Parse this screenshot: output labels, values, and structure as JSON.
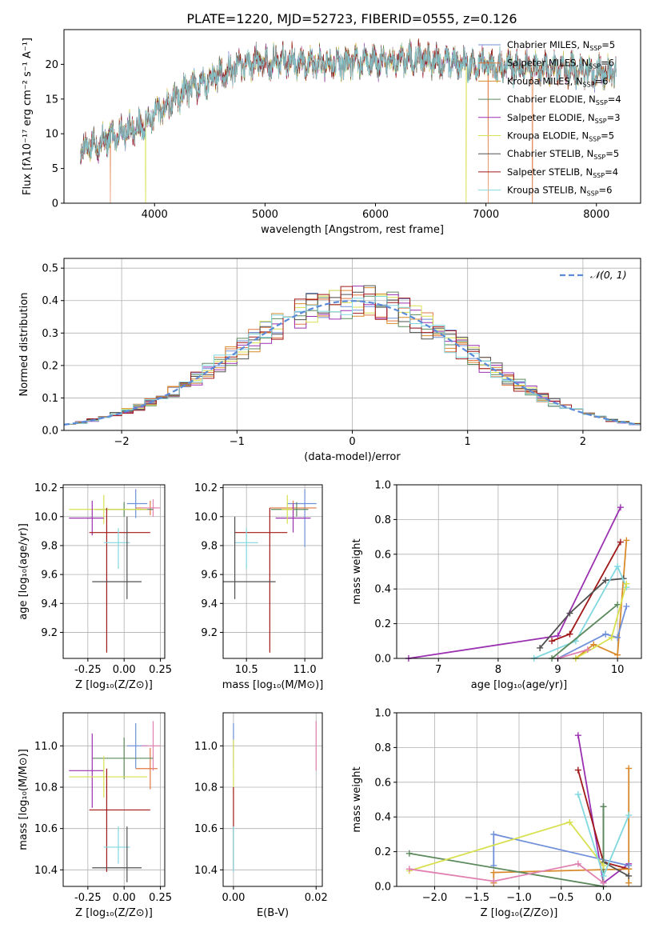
{
  "figure_title": "PLATE=1220, MJD=52723, FIBERID=0555, z=0.126",
  "colors": {
    "Chabrier MILES": "#6f8fd8",
    "Salpeter MILES": "#e07840",
    "Kroupa MILES": "#d88a2a",
    "Chabrier ELODIE": "#5c8a5c",
    "Salpeter ELODIE": "#9b30b0",
    "Kroupa ELODIE": "#d8e050",
    "Chabrier STELIB": "#505050",
    "Salpeter STELIB": "#a01818",
    "Kroupa STELIB": "#80d8e0",
    "extra_pink": "#e080b0",
    "gauss": "#5b8ad8"
  },
  "chart_data": [
    {
      "id": "spectrum",
      "type": "line",
      "title": "PLATE=1220, MJD=52723, FIBERID=0555, z=0.126",
      "xlabel": "wavelength [Angstrom, rest frame]",
      "ylabel": "Flux [fλ10⁻¹⁷ erg cm⁻² s⁻¹ A⁻¹]",
      "xlim": [
        3180,
        8400
      ],
      "ylim": [
        0,
        25
      ],
      "xticks": [
        4000,
        5000,
        6000,
        7000,
        8000
      ],
      "yticks": [
        0,
        5,
        10,
        15,
        20
      ],
      "grid": false,
      "legend_position": "top-right",
      "x_range": [
        3330,
        8180
      ],
      "continuum": [
        [
          3330,
          7.6
        ],
        [
          3500,
          8.7
        ],
        [
          3700,
          10.3
        ],
        [
          3900,
          11.2
        ],
        [
          4050,
          13.5
        ],
        [
          4300,
          16.3
        ],
        [
          4600,
          18.6
        ],
        [
          4900,
          20.3
        ],
        [
          5200,
          20.5
        ],
        [
          5500,
          20.2
        ],
        [
          5800,
          20.1
        ],
        [
          6100,
          20.4
        ],
        [
          6400,
          20.8
        ],
        [
          6700,
          20.2
        ],
        [
          7000,
          19.7
        ],
        [
          7300,
          19.6
        ],
        [
          7700,
          19.3
        ],
        [
          8180,
          18.6
        ]
      ],
      "dropouts": [
        [
          3600,
          "Salpeter MILES"
        ],
        [
          3920,
          "Kroupa ELODIE"
        ],
        [
          6820,
          "Kroupa ELODIE"
        ],
        [
          7020,
          "Salpeter MILES"
        ],
        [
          7420,
          "Salpeter MILES"
        ]
      ],
      "legend": [
        {
          "label": "Chabrier MILES, N",
          "sub": "SSP",
          "n": "=5"
        },
        {
          "label": "Salpeter MILES, N",
          "sub": "SSP",
          "n": "=6"
        },
        {
          "label": "Kroupa MILES, N",
          "sub": "SSP",
          "n": "=6"
        },
        {
          "label": "Chabrier ELODIE, N",
          "sub": "SSP",
          "n": "=4"
        },
        {
          "label": "Salpeter ELODIE, N",
          "sub": "SSP",
          "n": "=3"
        },
        {
          "label": "Kroupa ELODIE, N",
          "sub": "SSP",
          "n": "=5"
        },
        {
          "label": "Chabrier STELIB, N",
          "sub": "SSP",
          "n": "=5"
        },
        {
          "label": "Salpeter STELIB, N",
          "sub": "SSP",
          "n": "=4"
        },
        {
          "label": "Kroupa STELIB, N",
          "sub": "SSP",
          "n": "=6"
        }
      ],
      "series_names": [
        "Chabrier MILES",
        "Salpeter MILES",
        "Kroupa MILES",
        "Chabrier ELODIE",
        "Salpeter ELODIE",
        "Kroupa ELODIE",
        "Chabrier STELIB",
        "Salpeter STELIB",
        "Kroupa STELIB"
      ]
    },
    {
      "id": "residuals",
      "type": "bar",
      "xlabel": "(data-model)/error",
      "ylabel": "Normed distribution",
      "xlim": [
        -2.5,
        2.5
      ],
      "ylim": [
        0,
        0.53
      ],
      "xticks": [
        -2,
        -1,
        0,
        1,
        2
      ],
      "yticks": [
        0.0,
        0.1,
        0.2,
        0.3,
        0.4,
        0.5
      ],
      "grid": true,
      "legend_position": "top-right",
      "legend": [
        {
          "label": "𝒩(0, 1)"
        }
      ],
      "bin_width": 0.1,
      "series_names": [
        "Chabrier MILES",
        "Salpeter MILES",
        "Kroupa MILES",
        "Chabrier ELODIE",
        "Salpeter ELODIE",
        "Kroupa ELODIE",
        "Chabrier STELIB",
        "Salpeter STELIB",
        "Kroupa STELIB"
      ]
    },
    {
      "id": "age_vs_Z",
      "type": "scatter",
      "xlabel": "Z [log₁₀(Z/Z⊙)]",
      "ylabel": "age  [log₁₀(age/yr)]",
      "xlim": [
        -0.42,
        0.28
      ],
      "ylim": [
        9.02,
        10.22
      ],
      "xticks": [
        "-0.25",
        "0.00",
        "0.25"
      ],
      "xtick_values": [
        -0.25,
        0.0,
        0.25
      ],
      "yticks": [
        "9.2",
        "9.4",
        "9.6",
        "9.8",
        "10.0",
        "10.2"
      ],
      "ytick_values": [
        9.2,
        9.4,
        9.6,
        9.8,
        10.0,
        10.2
      ],
      "grid": true,
      "points": [
        {
          "series": "Chabrier MILES",
          "x": 0.08,
          "xerr": [
            0.06,
            0.08
          ],
          "y": 10.09,
          "yerr": [
            0.1,
            0.1
          ]
        },
        {
          "series": "Salpeter MILES",
          "x": 0.18,
          "xerr": [
            0.1,
            0.05
          ],
          "y": 10.06,
          "yerr": [
            0.05,
            0.05
          ]
        },
        {
          "series": "extra_pink",
          "x": 0.2,
          "xerr": [
            0.08,
            0.05
          ],
          "y": 10.06,
          "yerr": [
            0.06,
            0.06
          ]
        },
        {
          "series": "Chabrier ELODIE",
          "x": 0.0,
          "xerr": [
            0.2,
            0.2
          ],
          "y": 10.05,
          "yerr": [
            0.05,
            0.05
          ]
        },
        {
          "series": "Kroupa ELODIE",
          "x": -0.14,
          "xerr": [
            0.24,
            0.3
          ],
          "y": 10.05,
          "yerr": [
            0.1,
            0.1
          ]
        },
        {
          "series": "Salpeter ELODIE",
          "x": -0.22,
          "xerr": [
            0.16,
            0.08
          ],
          "y": 9.99,
          "yerr": [
            0.12,
            0.12
          ]
        },
        {
          "series": "Salpeter STELIB",
          "x": -0.12,
          "xerr": [
            0.12,
            0.3
          ],
          "y": 9.89,
          "yerr": [
            0.83,
            0.17
          ]
        },
        {
          "series": "Kroupa STELIB",
          "x": -0.04,
          "xerr": [
            0.1,
            0.08
          ],
          "y": 9.82,
          "yerr": [
            0.18,
            0.1
          ]
        },
        {
          "series": "Chabrier STELIB",
          "x": 0.02,
          "xerr": [
            0.24,
            0.1
          ],
          "y": 9.55,
          "yerr": [
            0.12,
            0.45
          ]
        }
      ]
    },
    {
      "id": "age_vs_mass",
      "type": "scatter",
      "xlabel": "mass [log₁₀(M/M⊙)]",
      "ylabel": "",
      "xlim": [
        10.3,
        11.15
      ],
      "ylim": [
        9.02,
        10.22
      ],
      "xticks": [
        "10.5",
        "11.0"
      ],
      "xtick_values": [
        10.5,
        11.0
      ],
      "yticks": [
        "9.2",
        "9.4",
        "9.6",
        "9.8",
        "10.0",
        "10.2"
      ],
      "ytick_values": [
        9.2,
        9.4,
        9.6,
        9.8,
        10.0,
        10.2
      ],
      "grid": true,
      "points": [
        {
          "series": "Chabrier MILES",
          "x": 11.0,
          "xerr": [
            0.15,
            0.1
          ],
          "y": 10.09,
          "yerr": [
            0.3,
            0.1
          ]
        },
        {
          "series": "Salpeter MILES",
          "x": 10.9,
          "xerr": [
            0.2,
            0.2
          ],
          "y": 10.06,
          "yerr": [
            0.05,
            0.05
          ]
        },
        {
          "series": "Chabrier ELODIE",
          "x": 10.93,
          "xerr": [
            0.22,
            0.1
          ],
          "y": 10.05,
          "yerr": [
            0.05,
            0.05
          ]
        },
        {
          "series": "Salpeter ELODIE",
          "x": 10.9,
          "xerr": [
            0.15,
            0.15
          ],
          "y": 9.99,
          "yerr": [
            0.1,
            0.1
          ]
        },
        {
          "series": "Kroupa ELODIE",
          "x": 10.85,
          "xerr": [
            0.05,
            0.05
          ],
          "y": 10.05,
          "yerr": [
            0.1,
            0.1
          ]
        },
        {
          "series": "Salpeter STELIB",
          "x": 10.7,
          "xerr": [
            0.3,
            0.15
          ],
          "y": 9.89,
          "yerr": [
            0.83,
            0.17
          ]
        },
        {
          "series": "Kroupa STELIB",
          "x": 10.5,
          "xerr": [
            0.1,
            0.1
          ],
          "y": 9.82,
          "yerr": [
            0.18,
            0.1
          ]
        },
        {
          "series": "Chabrier STELIB",
          "x": 10.4,
          "xerr": [
            0.1,
            0.35
          ],
          "y": 9.55,
          "yerr": [
            0.12,
            0.45
          ]
        }
      ]
    },
    {
      "id": "massweight_vs_age",
      "type": "line",
      "xlabel": "age  [log₁₀(age/yr)]",
      "ylabel": "mass weight",
      "xlim": [
        6.3,
        10.4
      ],
      "ylim": [
        0.0,
        1.0
      ],
      "xticks": [
        "7",
        "8",
        "9",
        "10"
      ],
      "xtick_values": [
        7,
        8,
        9,
        10
      ],
      "yticks": [
        "0.0",
        "0.2",
        "0.4",
        "0.6",
        "0.8",
        "1.0"
      ],
      "ytick_values": [
        0.0,
        0.2,
        0.4,
        0.6,
        0.8,
        1.0
      ],
      "grid": true,
      "series": [
        {
          "series": "Salpeter ELODIE",
          "x": [
            6.5,
            9.0,
            10.05
          ],
          "y": [
            0.0,
            0.13,
            0.87
          ]
        },
        {
          "series": "Salpeter STELIB",
          "x": [
            8.9,
            9.2,
            10.05
          ],
          "y": [
            0.1,
            0.14,
            0.67
          ]
        },
        {
          "series": "Kroupa MILES",
          "x": [
            9.3,
            9.6,
            10.0,
            10.15
          ],
          "y": [
            0.0,
            0.08,
            0.02,
            0.68
          ]
        },
        {
          "series": "Chabrier STELIB",
          "x": [
            8.7,
            9.2,
            9.8,
            10.1
          ],
          "y": [
            0.06,
            0.26,
            0.45,
            0.46
          ]
        },
        {
          "series": "Chabrier MILES",
          "x": [
            9.0,
            9.8,
            10.0,
            10.15
          ],
          "y": [
            0.0,
            0.14,
            0.12,
            0.3
          ]
        },
        {
          "series": "Kroupa STELIB",
          "x": [
            8.6,
            9.3,
            10.0,
            10.15
          ],
          "y": [
            0.0,
            0.1,
            0.53,
            0.41
          ]
        },
        {
          "series": "Chabrier ELODIE",
          "x": [
            8.9,
            10.0
          ],
          "y": [
            0.0,
            0.31
          ]
        },
        {
          "series": "Kroupa ELODIE",
          "x": [
            9.3,
            9.9,
            10.15
          ],
          "y": [
            0.0,
            0.12,
            0.43
          ]
        },
        {
          "series": "extra_pink",
          "x": [
            9.0,
            9.5
          ],
          "y": [
            0.0,
            0.05
          ]
        }
      ]
    },
    {
      "id": "mass_vs_Z",
      "type": "scatter",
      "xlabel": "Z [log₁₀(Z/Z⊙)]",
      "ylabel": "mass [log₁₀(M/M⊙)]",
      "xlim": [
        -0.42,
        0.28
      ],
      "ylim": [
        10.32,
        11.16
      ],
      "xticks": [
        "-0.25",
        "0.00",
        "0.25"
      ],
      "xtick_values": [
        -0.25,
        0.0,
        0.25
      ],
      "yticks": [
        "10.4",
        "10.6",
        "10.8",
        "11.0"
      ],
      "ytick_values": [
        10.4,
        10.6,
        10.8,
        11.0
      ],
      "grid": true,
      "points": [
        {
          "series": "Chabrier MILES",
          "x": 0.08,
          "xerr": [
            0.06,
            0.08
          ],
          "y": 11.0,
          "yerr": [
            0.11,
            0.11
          ]
        },
        {
          "series": "Salpeter MILES",
          "x": 0.18,
          "xerr": [
            0.1,
            0.05
          ],
          "y": 10.89,
          "yerr": [
            0.1,
            0.1
          ]
        },
        {
          "series": "extra_pink",
          "x": 0.2,
          "xerr": [
            0.08,
            0.05
          ],
          "y": 11.0,
          "yerr": [
            0.12,
            0.12
          ]
        },
        {
          "series": "Chabrier ELODIE",
          "x": 0.0,
          "xerr": [
            0.22,
            0.2
          ],
          "y": 10.94,
          "yerr": [
            0.1,
            0.1
          ]
        },
        {
          "series": "Salpeter ELODIE",
          "x": -0.22,
          "xerr": [
            0.16,
            0.08
          ],
          "y": 10.88,
          "yerr": [
            0.18,
            0.18
          ]
        },
        {
          "series": "Kroupa ELODIE",
          "x": -0.14,
          "xerr": [
            0.24,
            0.3
          ],
          "y": 10.85,
          "yerr": [
            0.1,
            0.1
          ]
        },
        {
          "series": "Salpeter STELIB",
          "x": -0.12,
          "xerr": [
            0.12,
            0.3
          ],
          "y": 10.69,
          "yerr": [
            0.3,
            0.2
          ]
        },
        {
          "series": "Kroupa STELIB",
          "x": -0.04,
          "xerr": [
            0.1,
            0.08
          ],
          "y": 10.51,
          "yerr": [
            0.08,
            0.1
          ]
        },
        {
          "series": "Chabrier STELIB",
          "x": 0.02,
          "xerr": [
            0.24,
            0.1
          ],
          "y": 10.41,
          "yerr": [
            0.07,
            0.2
          ]
        }
      ]
    },
    {
      "id": "mass_vs_ebv",
      "type": "scatter",
      "xlabel": "E(B-V)",
      "ylabel": "",
      "xlim": [
        -0.0025,
        0.0215
      ],
      "ylim": [
        10.32,
        11.16
      ],
      "xticks": [
        "0.00",
        "0.02"
      ],
      "xtick_values": [
        0.0,
        0.02
      ],
      "yticks": [
        "10.4",
        "10.6",
        "10.8",
        "11.0"
      ],
      "ytick_values": [
        10.4,
        10.6,
        10.8,
        11.0
      ],
      "grid": true,
      "points": [
        {
          "series": "Chabrier MILES",
          "x": 0.0,
          "y": 11.0,
          "yerr": [
            0.11,
            0.11
          ]
        },
        {
          "series": "Kroupa ELODIE",
          "x": 0.0,
          "y": 10.9,
          "yerr": [
            0.13,
            0.13
          ]
        },
        {
          "series": "Salpeter STELIB",
          "x": 0.0,
          "y": 10.7,
          "yerr": [
            0.3,
            0.1
          ]
        },
        {
          "series": "Kroupa STELIB",
          "x": 0.0,
          "y": 10.51,
          "yerr": [
            0.12,
            0.1
          ]
        },
        {
          "series": "extra_pink",
          "x": 0.02,
          "y": 11.0,
          "yerr": [
            0.12,
            0.12
          ]
        }
      ]
    },
    {
      "id": "massweight_vs_Z",
      "type": "line",
      "xlabel": "Z [log₁₀(Z/Z⊙)]",
      "ylabel": "mass weight",
      "xlim": [
        -2.45,
        0.45
      ],
      "ylim": [
        0.0,
        1.0
      ],
      "xticks": [
        "−2.0",
        "−1.5",
        "−1.0",
        "−0.5",
        "0.0"
      ],
      "xtick_values": [
        -2.0,
        -1.5,
        -1.0,
        -0.5,
        0.0
      ],
      "yticks": [
        "0.0",
        "0.2",
        "0.4",
        "0.6",
        "0.8",
        "1.0"
      ],
      "ytick_values": [
        0.0,
        0.2,
        0.4,
        0.6,
        0.8,
        1.0
      ],
      "grid": true,
      "series": [
        {
          "series": "Salpeter ELODIE",
          "x": [
            -0.3,
            0.0,
            0.3
          ],
          "y": [
            0.87,
            0.02,
            0.13
          ]
        },
        {
          "series": "Salpeter STELIB",
          "x": [
            -0.3,
            0.0,
            0.3
          ],
          "y": [
            0.67,
            0.14,
            0.1
          ]
        },
        {
          "series": "Kroupa MILES",
          "x": [
            -1.3,
            -1.3,
            0.3,
            0.3,
            0.3
          ],
          "y": [
            0.02,
            0.08,
            0.1,
            0.68,
            0.02
          ]
        },
        {
          "series": "Chabrier MILES",
          "x": [
            -1.3,
            -1.3,
            0.3
          ],
          "y": [
            0.12,
            0.3,
            0.12
          ]
        },
        {
          "series": "Chabrier STELIB",
          "x": [
            0.0,
            0.0,
            0.3
          ],
          "y": [
            0.46,
            0.14,
            0.06
          ]
        },
        {
          "series": "Chabrier ELODIE",
          "x": [
            -2.3,
            0.0,
            0.0
          ],
          "y": [
            0.19,
            0.0,
            0.46
          ]
        },
        {
          "series": "Kroupa ELODIE",
          "x": [
            -2.3,
            -0.4,
            0.0
          ],
          "y": [
            0.09,
            0.37,
            0.12
          ]
        },
        {
          "series": "Kroupa STELIB",
          "x": [
            -0.3,
            0.0,
            0.3
          ],
          "y": [
            0.53,
            0.06,
            0.41
          ]
        },
        {
          "series": "extra_pink",
          "x": [
            -2.3,
            -1.3,
            -0.3,
            0.0
          ],
          "y": [
            0.1,
            0.03,
            0.13,
            0.02
          ]
        }
      ]
    }
  ]
}
